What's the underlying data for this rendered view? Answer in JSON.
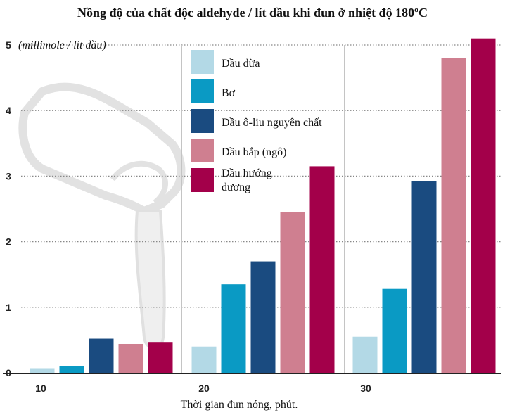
{
  "chart_data": {
    "type": "bar",
    "title": "Nồng độ của chất độc aldehyde / lít dầu khi đun ở nhiệt độ 180ºC",
    "ylabel": "(millimole / lít dầu)",
    "xlabel": "Thời gian đun nóng, phút.",
    "categories": [
      "10",
      "20",
      "30"
    ],
    "ylim": [
      0,
      5
    ],
    "yticks": [
      0,
      1,
      2,
      3,
      4,
      5
    ],
    "grid": true,
    "legend_position": "top-center",
    "series": [
      {
        "name": "Dầu dừa",
        "color": "#b3d9e6",
        "values": [
          0.07,
          0.4,
          0.55
        ]
      },
      {
        "name": "Bơ",
        "color": "#0a9ac4",
        "values": [
          0.1,
          1.35,
          1.28
        ]
      },
      {
        "name": "Dầu ô-liu nguyên chất",
        "color": "#1a4b80",
        "values": [
          0.52,
          1.7,
          2.92
        ]
      },
      {
        "name": "Dầu bắp (ngô)",
        "color": "#cf7f90",
        "values": [
          0.44,
          2.45,
          4.8
        ]
      },
      {
        "name": "Dầu hướng dương",
        "color": "#a3004a",
        "values": [
          0.47,
          3.15,
          5.1
        ]
      }
    ]
  }
}
